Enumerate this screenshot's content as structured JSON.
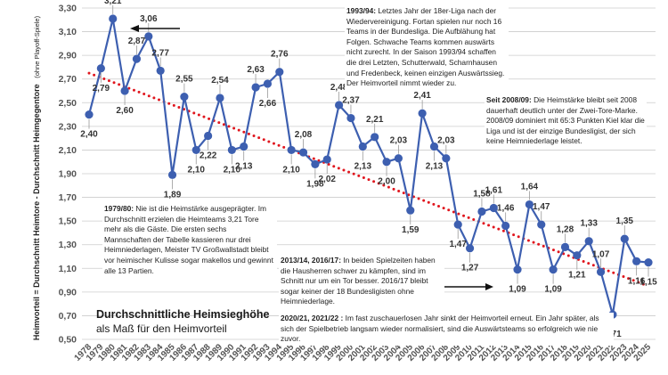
{
  "chart_data": {
    "type": "line",
    "title": "Durchschnittliche Heimsieghöhe",
    "subtitle": "als Maß für den Heimvorteil",
    "ylabel": "Heimvorteil = Durchschnitt Heimtore - Durchschnitt Heimgegentore",
    "ylabel_note": "(ohne Playoff-Spiele)",
    "xlabel": "",
    "ylim": [
      0.5,
      3.3
    ],
    "yticks": [
      "0,50",
      "0,70",
      "0,90",
      "1,10",
      "1,30",
      "1,50",
      "1,70",
      "1,90",
      "2,10",
      "2,30",
      "2,50",
      "2,70",
      "2,90",
      "3,10",
      "3,30"
    ],
    "grid": "horizontal",
    "colors": {
      "line": "#3d5fb0",
      "marker": "#3d5fb0",
      "trend": "#e0161e",
      "grid": "#cccccc"
    },
    "categories": [
      "1978",
      "1979",
      "1980",
      "1981",
      "1982",
      "1983",
      "1984",
      "1985",
      "1986",
      "1987",
      "1988",
      "1989",
      "1990",
      "1991",
      "1992",
      "1993",
      "1994",
      "1995",
      "1996",
      "1997",
      "1998",
      "1999",
      "2000",
      "2001",
      "2002",
      "2003",
      "2004",
      "2005",
      "2006",
      "2007",
      "2008",
      "2009",
      "2010",
      "2011",
      "2012",
      "2013",
      "2014",
      "2015",
      "2016",
      "2017",
      "2018",
      "2019",
      "2020",
      "2021",
      "2022",
      "2023",
      "2024",
      "2025"
    ],
    "values": [
      2.4,
      2.79,
      3.21,
      2.6,
      2.87,
      3.06,
      2.77,
      1.89,
      2.55,
      2.1,
      2.22,
      2.54,
      2.1,
      2.13,
      2.63,
      2.66,
      2.76,
      2.1,
      2.08,
      1.98,
      2.02,
      2.48,
      2.37,
      2.13,
      2.21,
      2.0,
      2.03,
      1.59,
      2.41,
      2.13,
      2.03,
      1.47,
      1.27,
      1.58,
      1.61,
      1.46,
      1.09,
      1.64,
      1.47,
      1.09,
      1.28,
      1.21,
      1.33,
      1.07,
      0.71,
      1.35,
      1.16,
      1.15
    ],
    "data_labels": [
      "2,40",
      "2,79",
      "3,21",
      "2,60",
      "2,87",
      "3,06",
      "2,77",
      "1,89",
      "2,55",
      "2,10",
      "2,22",
      "2,54",
      "2,10",
      "2,13",
      "2,63",
      "2,66",
      "2,76",
      "2,10",
      "2,08",
      "1,98",
      "2,02",
      "2,48",
      "2,37",
      "2,13",
      "2,21",
      "2,00",
      "2,03",
      "1,59",
      "2,41",
      "2,13",
      "2,03",
      "1,47",
      "1,27",
      "1,58",
      "1,61",
      "1,46",
      "1,09",
      "1,64",
      "1,47",
      "1,09",
      "1,28",
      "1,21",
      "1,33",
      "1,07",
      "0,71",
      "1,35",
      "1,16",
      "1,15"
    ],
    "trend": {
      "style": "dotted",
      "start_value": 2.75,
      "end_value": 0.95
    },
    "annotations": [
      {
        "id": "a1993",
        "head": "1993/94:",
        "text": "Letztes Jahr der 18er-Liga nach der Wiedervereinigung. Fortan spielen nur noch 16 Teams in der Bundesliga. Die Aufblähung hat Folgen. Schwache Teams kommen auswärts nicht zurecht. In der Saison 1993/94 schaffen die drei Letzten, Schutterwald, Scharnhausen und Fredenbeck, keinen einzigen Auswärtssieg. Der Heimvorteil nimmt wieder zu."
      },
      {
        "id": "a2008",
        "head": "Seit 2008/09:",
        "text": "Die Heimstärke bleibt seit 2008 dauerhaft deutlich unter der Zwei-Tore-Marke. 2008/09 dominiert mit 65:3 Punkten Kiel klar die Liga und ist der einzige Bundesligist, der sich keine Heimniederlage leistet."
      },
      {
        "id": "a1979",
        "head": "1979/80:",
        "text": "Nie ist die Heimstärke ausgeprägter. Im Durchschnitt erzielen die Heimteams 3,21 Tore mehr als die Gäste. Die ersten sechs Mannschaften der Tabelle kassieren nur drei Heimniederlagen, Meister TV Großwallstadt bleibt vor heimischer Kulisse sogar makellos und gewinnt alle 13 Partien."
      },
      {
        "id": "a2013",
        "head": "2013/14, 2016/17:",
        "text": "In beiden Spielzeiten haben die Hausherren schwer zu kämpfen, sind im Schnitt nur um ein Tor besser. 2016/17 bleibt sogar keiner der 18 Bundesligisten ohne Heimniederlage."
      },
      {
        "id": "a2020",
        "head": "2020/21, 2021/22 :",
        "text": "Im fast zuschauerlosen Jahr sinkt der Heimvorteil erneut. Ein Jahr später, als sich der Spielbetrieb langsam wieder normalisiert, sind die Auswärtsteams so erfolgreich wie nie zuvor."
      }
    ]
  }
}
